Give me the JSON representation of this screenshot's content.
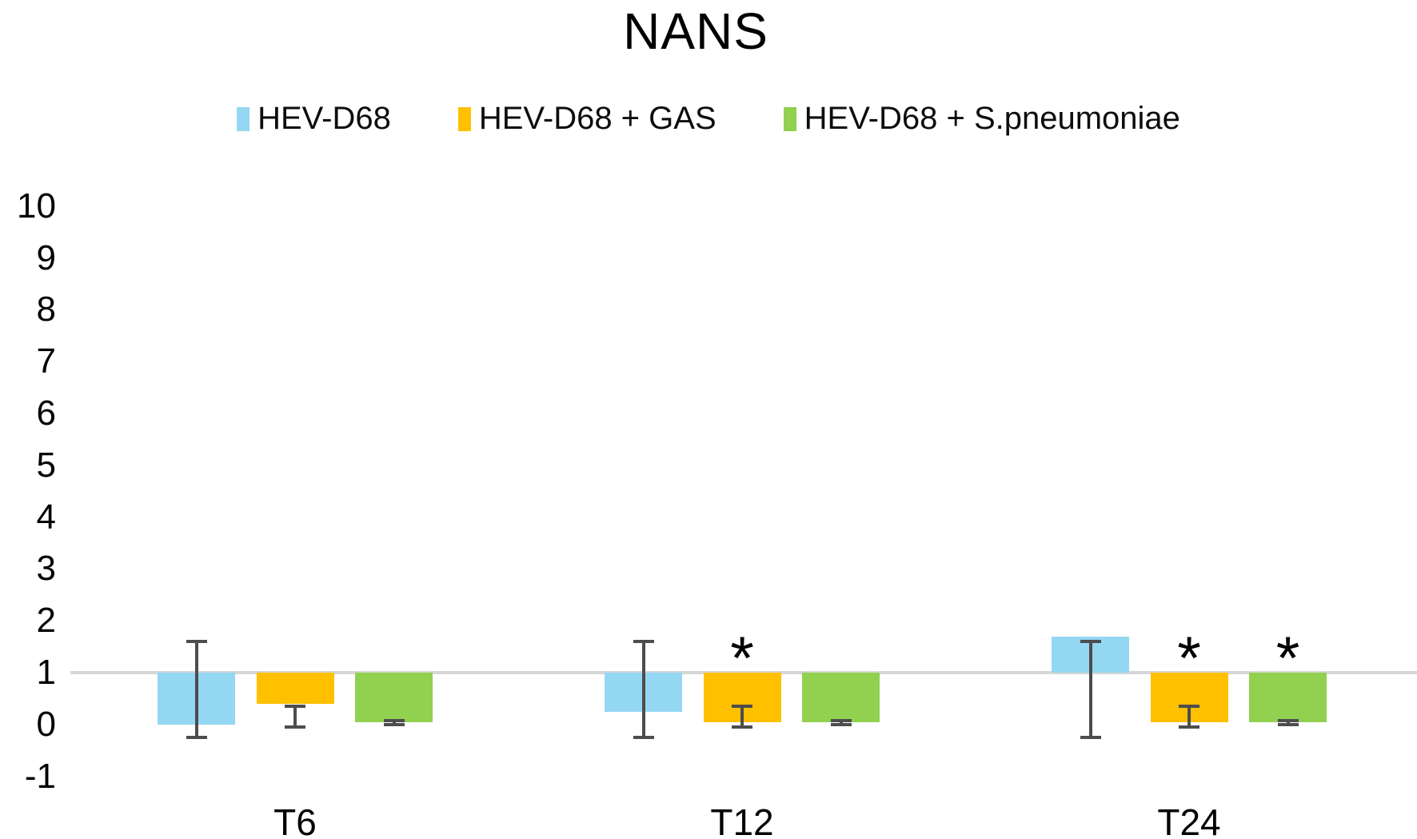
{
  "title": "NANS",
  "legend": {
    "items": [
      {
        "label": "HEV-D68",
        "color": "#94d7f3"
      },
      {
        "label": "HEV-D68 + GAS",
        "color": "#ffc000"
      },
      {
        "label": "HEV-D68 + S.pneumoniae",
        "color": "#92d050"
      }
    ]
  },
  "chart_data": {
    "type": "bar",
    "title": "NANS",
    "categories": [
      "T6",
      "T12",
      "T24"
    ],
    "baseline": 1,
    "note": "bars are drawn from the baseline value 1 to each series value; asterisk marks significance",
    "significance_marker": "*",
    "ylim": [
      -1,
      10
    ],
    "yticks": [
      "10",
      "9",
      "8",
      "7",
      "6",
      "5",
      "4",
      "3",
      "2",
      "1",
      "0",
      "-1"
    ],
    "grid": "single horizontal axis line at y=1",
    "legend_position": "top",
    "series": [
      {
        "name": "HEV-D68",
        "color": "#94d7f3",
        "values": [
          0.0,
          0.25,
          1.7
        ],
        "error_top": [
          1.6,
          1.6,
          1.6
        ],
        "error_bottom": [
          -0.25,
          -0.25,
          -0.25
        ],
        "significant": [
          false,
          false,
          false
        ]
      },
      {
        "name": "HEV-D68 + GAS",
        "color": "#ffc000",
        "values": [
          0.4,
          0.05,
          0.05
        ],
        "error_top": [
          0.35,
          0.35,
          0.35
        ],
        "error_bottom": [
          -0.05,
          -0.05,
          -0.05
        ],
        "significant": [
          false,
          true,
          true
        ]
      },
      {
        "name": "HEV-D68 + S.pneumoniae",
        "color": "#92d050",
        "values": [
          0.05,
          0.05,
          0.05
        ],
        "error_top": [
          0.08,
          0.08,
          0.08
        ],
        "error_bottom": [
          0.0,
          0.0,
          0.0
        ],
        "significant": [
          false,
          false,
          true
        ]
      }
    ]
  }
}
